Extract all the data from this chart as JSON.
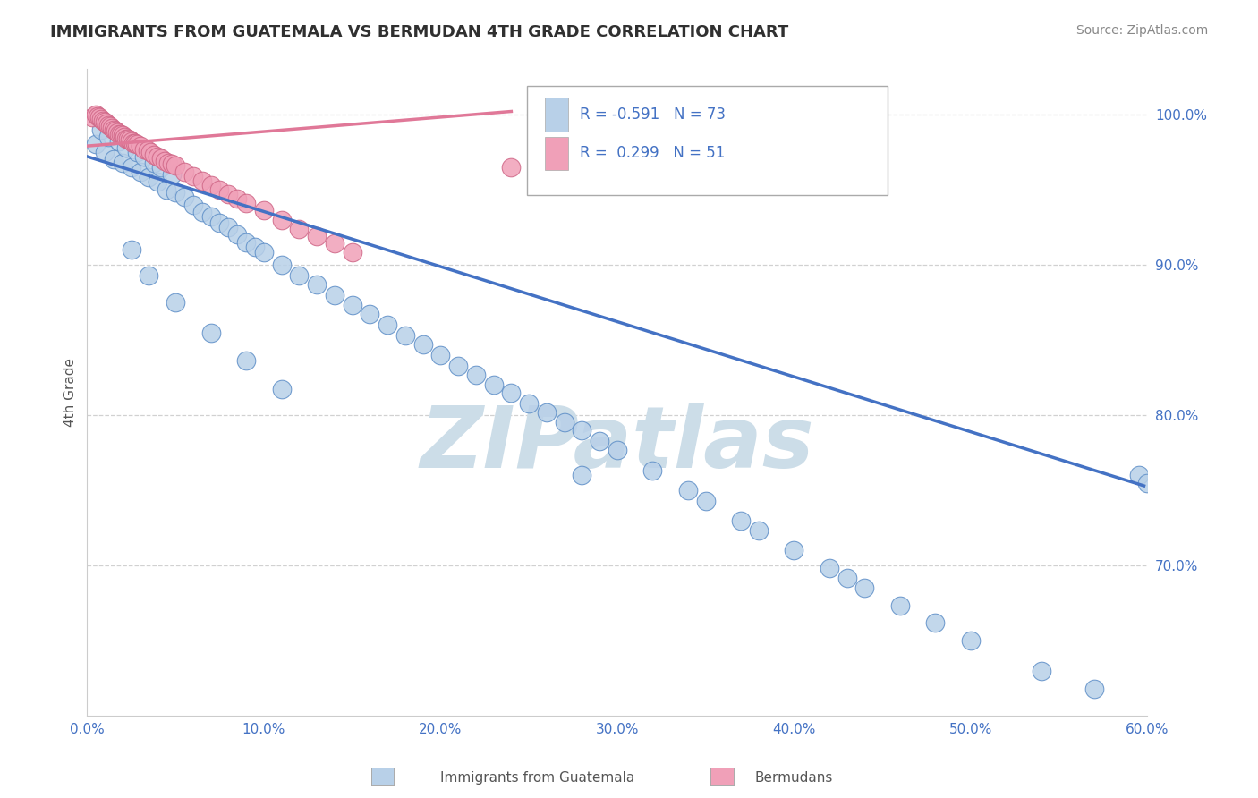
{
  "title": "IMMIGRANTS FROM GUATEMALA VS BERMUDAN 4TH GRADE CORRELATION CHART",
  "source": "Source: ZipAtlas.com",
  "ylabel": "4th Grade",
  "legend_label1": "Immigrants from Guatemala",
  "legend_label2": "Bermudans",
  "R1": -0.591,
  "N1": 73,
  "R2": 0.299,
  "N2": 51,
  "color_blue": "#b8d0e8",
  "color_blue_edge": "#6090c8",
  "color_blue_line": "#4472c4",
  "color_pink": "#f0a0b8",
  "color_pink_edge": "#d06888",
  "color_pink_line": "#e07898",
  "xlim": [
    0.0,
    0.6
  ],
  "ylim": [
    0.6,
    1.03
  ],
  "xtick_labels": [
    "0.0%",
    "10.0%",
    "20.0%",
    "30.0%",
    "40.0%",
    "50.0%",
    "60.0%"
  ],
  "xtick_vals": [
    0.0,
    0.1,
    0.2,
    0.3,
    0.4,
    0.5,
    0.6
  ],
  "ytick_labels": [
    "100.0%",
    "90.0%",
    "80.0%",
    "70.0%"
  ],
  "ytick_vals": [
    1.0,
    0.9,
    0.8,
    0.7
  ],
  "blue_scatter_x": [
    0.005,
    0.008,
    0.01,
    0.012,
    0.015,
    0.018,
    0.02,
    0.022,
    0.025,
    0.028,
    0.03,
    0.032,
    0.035,
    0.038,
    0.04,
    0.042,
    0.045,
    0.048,
    0.05,
    0.055,
    0.06,
    0.065,
    0.07,
    0.075,
    0.08,
    0.085,
    0.09,
    0.095,
    0.1,
    0.11,
    0.12,
    0.13,
    0.14,
    0.15,
    0.16,
    0.17,
    0.18,
    0.19,
    0.2,
    0.21,
    0.22,
    0.23,
    0.24,
    0.25,
    0.26,
    0.27,
    0.28,
    0.29,
    0.3,
    0.32,
    0.34,
    0.35,
    0.37,
    0.38,
    0.4,
    0.42,
    0.44,
    0.46,
    0.48,
    0.5,
    0.54,
    0.57,
    0.595,
    0.025,
    0.035,
    0.05,
    0.07,
    0.09,
    0.11,
    0.28,
    0.43,
    0.6
  ],
  "blue_scatter_y": [
    0.98,
    0.99,
    0.975,
    0.985,
    0.97,
    0.982,
    0.968,
    0.978,
    0.965,
    0.975,
    0.962,
    0.972,
    0.958,
    0.968,
    0.955,
    0.965,
    0.95,
    0.96,
    0.948,
    0.945,
    0.94,
    0.935,
    0.932,
    0.928,
    0.925,
    0.92,
    0.915,
    0.912,
    0.908,
    0.9,
    0.893,
    0.887,
    0.88,
    0.873,
    0.867,
    0.86,
    0.853,
    0.847,
    0.84,
    0.833,
    0.827,
    0.82,
    0.815,
    0.808,
    0.802,
    0.795,
    0.79,
    0.783,
    0.777,
    0.763,
    0.75,
    0.743,
    0.73,
    0.723,
    0.71,
    0.698,
    0.685,
    0.673,
    0.662,
    0.65,
    0.63,
    0.618,
    0.76,
    0.91,
    0.893,
    0.875,
    0.855,
    0.836,
    0.817,
    0.76,
    0.692,
    0.755
  ],
  "pink_scatter_x": [
    0.003,
    0.005,
    0.006,
    0.007,
    0.008,
    0.009,
    0.01,
    0.011,
    0.012,
    0.013,
    0.014,
    0.015,
    0.016,
    0.017,
    0.018,
    0.019,
    0.02,
    0.021,
    0.022,
    0.023,
    0.024,
    0.025,
    0.026,
    0.027,
    0.028,
    0.03,
    0.032,
    0.034,
    0.036,
    0.038,
    0.04,
    0.042,
    0.044,
    0.046,
    0.048,
    0.05,
    0.055,
    0.06,
    0.065,
    0.07,
    0.075,
    0.08,
    0.085,
    0.09,
    0.1,
    0.11,
    0.12,
    0.13,
    0.14,
    0.15,
    0.24
  ],
  "pink_scatter_y": [
    0.998,
    1.0,
    0.999,
    0.998,
    0.997,
    0.996,
    0.995,
    0.994,
    0.993,
    0.992,
    0.991,
    0.99,
    0.989,
    0.988,
    0.987,
    0.987,
    0.986,
    0.985,
    0.984,
    0.984,
    0.983,
    0.982,
    0.981,
    0.981,
    0.98,
    0.979,
    0.977,
    0.976,
    0.975,
    0.973,
    0.972,
    0.971,
    0.969,
    0.968,
    0.967,
    0.966,
    0.962,
    0.959,
    0.956,
    0.953,
    0.95,
    0.947,
    0.944,
    0.941,
    0.936,
    0.93,
    0.924,
    0.919,
    0.914,
    0.908,
    0.965
  ],
  "blue_trend_x": [
    0.0,
    0.598
  ],
  "blue_trend_y": [
    0.972,
    0.753
  ],
  "pink_trend_x": [
    0.0,
    0.24
  ],
  "pink_trend_y": [
    0.979,
    1.002
  ],
  "watermark": "ZIPatlas",
  "watermark_color": "#ccdde8",
  "background_color": "#ffffff",
  "grid_color": "#cccccc",
  "title_color": "#303030",
  "axis_label_color": "#555555",
  "tick_label_color": "#4472c4",
  "source_color": "#888888"
}
